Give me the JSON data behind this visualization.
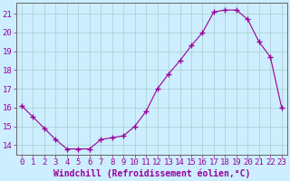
{
  "x": [
    0,
    1,
    2,
    3,
    4,
    5,
    6,
    7,
    8,
    9,
    10,
    11,
    12,
    13,
    14,
    15,
    16,
    17,
    18,
    19,
    20,
    21,
    22,
    23
  ],
  "y": [
    16.1,
    15.5,
    14.9,
    14.3,
    13.8,
    13.8,
    13.8,
    14.3,
    14.4,
    14.5,
    15.0,
    15.8,
    17.0,
    17.8,
    18.5,
    19.3,
    20.0,
    21.1,
    21.2,
    21.2,
    20.7,
    19.5,
    18.7,
    16.0
  ],
  "line_color": "#990099",
  "marker": "+",
  "marker_size": 4,
  "xlabel": "Windchill (Refroidissement éolien,°C)",
  "ylabel_ticks": [
    14,
    15,
    16,
    17,
    18,
    19,
    20,
    21
  ],
  "xtick_labels": [
    "0",
    "1",
    "2",
    "3",
    "4",
    "5",
    "6",
    "7",
    "8",
    "9",
    "10",
    "11",
    "12",
    "13",
    "14",
    "15",
    "16",
    "17",
    "18",
    "19",
    "20",
    "21",
    "22",
    "23"
  ],
  "xlim": [
    -0.5,
    23.5
  ],
  "ylim": [
    13.5,
    21.6
  ],
  "background_color": "#cceeff",
  "grid_color": "#aacccc",
  "tick_color": "#990099",
  "label_color": "#990099",
  "font_size": 6.5
}
